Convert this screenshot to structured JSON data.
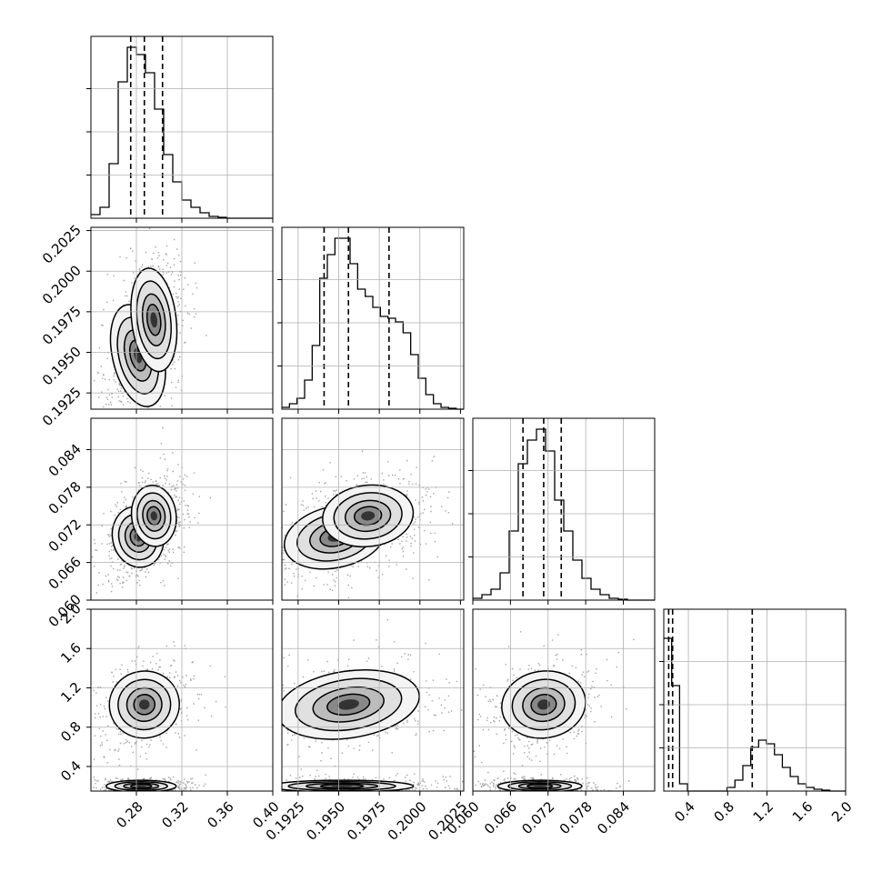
{
  "chart_data": {
    "type": "corner",
    "description_source": "corner plot of 4 parameters",
    "params": [
      {
        "ticks": [
          0.28,
          0.32,
          0.36,
          0.4
        ],
        "tick_labels": [
          "0.28",
          "0.32",
          "0.36",
          "0.40"
        ],
        "range": [
          0.24,
          0.4
        ]
      },
      {
        "ticks": [
          0.1925,
          0.195,
          0.1975,
          0.2,
          0.2025
        ],
        "tick_labels": [
          "0.1925",
          "0.1950",
          "0.1975",
          "0.2000",
          "0.2025"
        ],
        "range": [
          0.1915,
          0.2027
        ]
      },
      {
        "ticks": [
          0.06,
          0.066,
          0.072,
          0.078,
          0.084
        ],
        "tick_labels": [
          "0.060",
          "0.066",
          "0.072",
          "0.078",
          "0.084"
        ],
        "range": [
          0.06,
          0.089
        ]
      },
      {
        "ticks": [
          0.4,
          0.8,
          1.2,
          1.6,
          2.0
        ],
        "tick_labels": [
          "0.4",
          "0.8",
          "1.2",
          "1.6",
          "2.0"
        ],
        "range": [
          0.15,
          2.0
        ]
      }
    ],
    "quantiles": [
      [
        0.275,
        0.287,
        0.303
      ],
      [
        0.1941,
        0.1956,
        0.1981
      ],
      [
        0.068,
        0.0713,
        0.0741
      ],
      [
        0.2,
        0.24,
        1.05
      ]
    ],
    "hist_max": [
      1.0,
      1.0,
      1.0,
      1.0
    ],
    "histograms": [
      [
        0.02,
        0.06,
        0.3,
        0.75,
        0.94,
        0.9,
        0.8,
        0.6,
        0.35,
        0.2,
        0.1,
        0.06,
        0.03,
        0.01,
        0.005,
        0,
        0,
        0,
        0,
        0
      ],
      [
        0.01,
        0.03,
        0.06,
        0.16,
        0.35,
        0.72,
        0.85,
        0.94,
        0.94,
        0.8,
        0.66,
        0.62,
        0.56,
        0.51,
        0.5,
        0.48,
        0.42,
        0.3,
        0.17,
        0.08,
        0.03,
        0.01,
        0.005,
        0
      ],
      [
        0.01,
        0.03,
        0.06,
        0.15,
        0.38,
        0.75,
        0.88,
        0.94,
        0.82,
        0.55,
        0.38,
        0.22,
        0.12,
        0.06,
        0.03,
        0.01,
        0.005,
        0,
        0,
        0
      ],
      [
        0.84,
        0.58,
        0.04,
        0,
        0,
        0,
        0,
        0,
        0.02,
        0.06,
        0.14,
        0.24,
        0.28,
        0.26,
        0.2,
        0.13,
        0.08,
        0.04,
        0.02,
        0.01,
        0.005,
        0,
        0
      ]
    ]
  }
}
